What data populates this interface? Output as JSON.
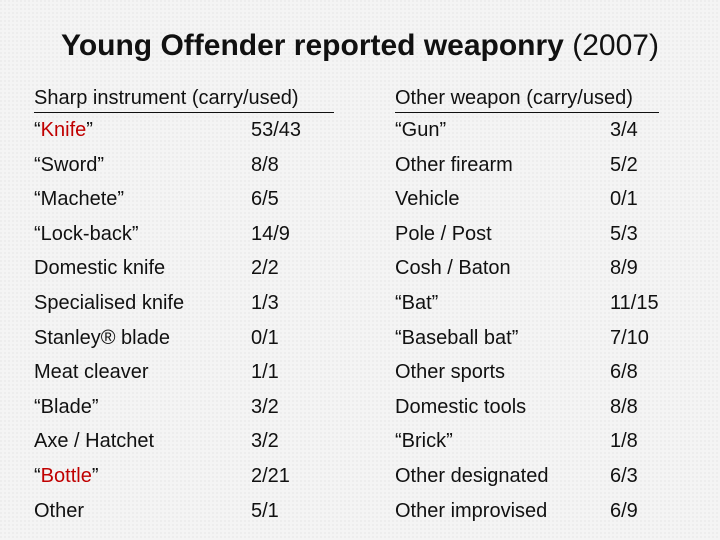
{
  "title": {
    "bold_text": "Young Offender reported weaponry",
    "year_text": "(2007)"
  },
  "sharp": {
    "header": "Sharp instrument (carry/used)",
    "rows": [
      {
        "pre": "“",
        "name": "Knife",
        "post": "”",
        "highlight": true,
        "value": "53/43"
      },
      {
        "pre": "",
        "name": "“Sword”",
        "post": "",
        "highlight": false,
        "value": "8/8"
      },
      {
        "pre": "",
        "name": "“Machete”",
        "post": "",
        "highlight": false,
        "value": "6/5"
      },
      {
        "pre": "",
        "name": "“Lock-back”",
        "post": "",
        "highlight": false,
        "value": "14/9"
      },
      {
        "pre": "",
        "name": "Domestic knife",
        "post": "",
        "highlight": false,
        "value": "2/2"
      },
      {
        "pre": "",
        "name": "Specialised knife",
        "post": "",
        "highlight": false,
        "value": "1/3"
      },
      {
        "pre": "",
        "name": "Stanley® blade",
        "post": "",
        "highlight": false,
        "value": "0/1"
      },
      {
        "pre": "",
        "name": "Meat cleaver",
        "post": "",
        "highlight": false,
        "value": "1/1"
      },
      {
        "pre": "",
        "name": "“Blade”",
        "post": "",
        "highlight": false,
        "value": "3/2"
      },
      {
        "pre": "",
        "name": "Axe / Hatchet",
        "post": "",
        "highlight": false,
        "value": "3/2"
      },
      {
        "pre": "“",
        "name": "Bottle",
        "post": "”",
        "highlight": true,
        "value": "2/21"
      },
      {
        "pre": "",
        "name": "Other",
        "post": "",
        "highlight": false,
        "value": "5/1"
      }
    ]
  },
  "other": {
    "header": "Other weapon (carry/used)",
    "rows": [
      {
        "name": "“Gun”",
        "value": "3/4"
      },
      {
        "name": "Other firearm",
        "value": "5/2"
      },
      {
        "name": "Vehicle",
        "value": "0/1"
      },
      {
        "name": "Pole / Post",
        "value": "5/3"
      },
      {
        "name": "Cosh / Baton",
        "value": "8/9"
      },
      {
        "name": "“Bat”",
        "value": "11/15"
      },
      {
        "name": "“Baseball bat”",
        "value": "7/10"
      },
      {
        "name": "Other sports",
        "value": "6/8"
      },
      {
        "name": "Domestic tools",
        "value": "8/8"
      },
      {
        "name": "“Brick”",
        "value": "1/8"
      },
      {
        "name": "Other designated",
        "value": "6/3"
      },
      {
        "name": "Other improvised",
        "value": "6/9"
      }
    ]
  },
  "colors": {
    "highlight": "#c00000",
    "text": "#111111"
  }
}
